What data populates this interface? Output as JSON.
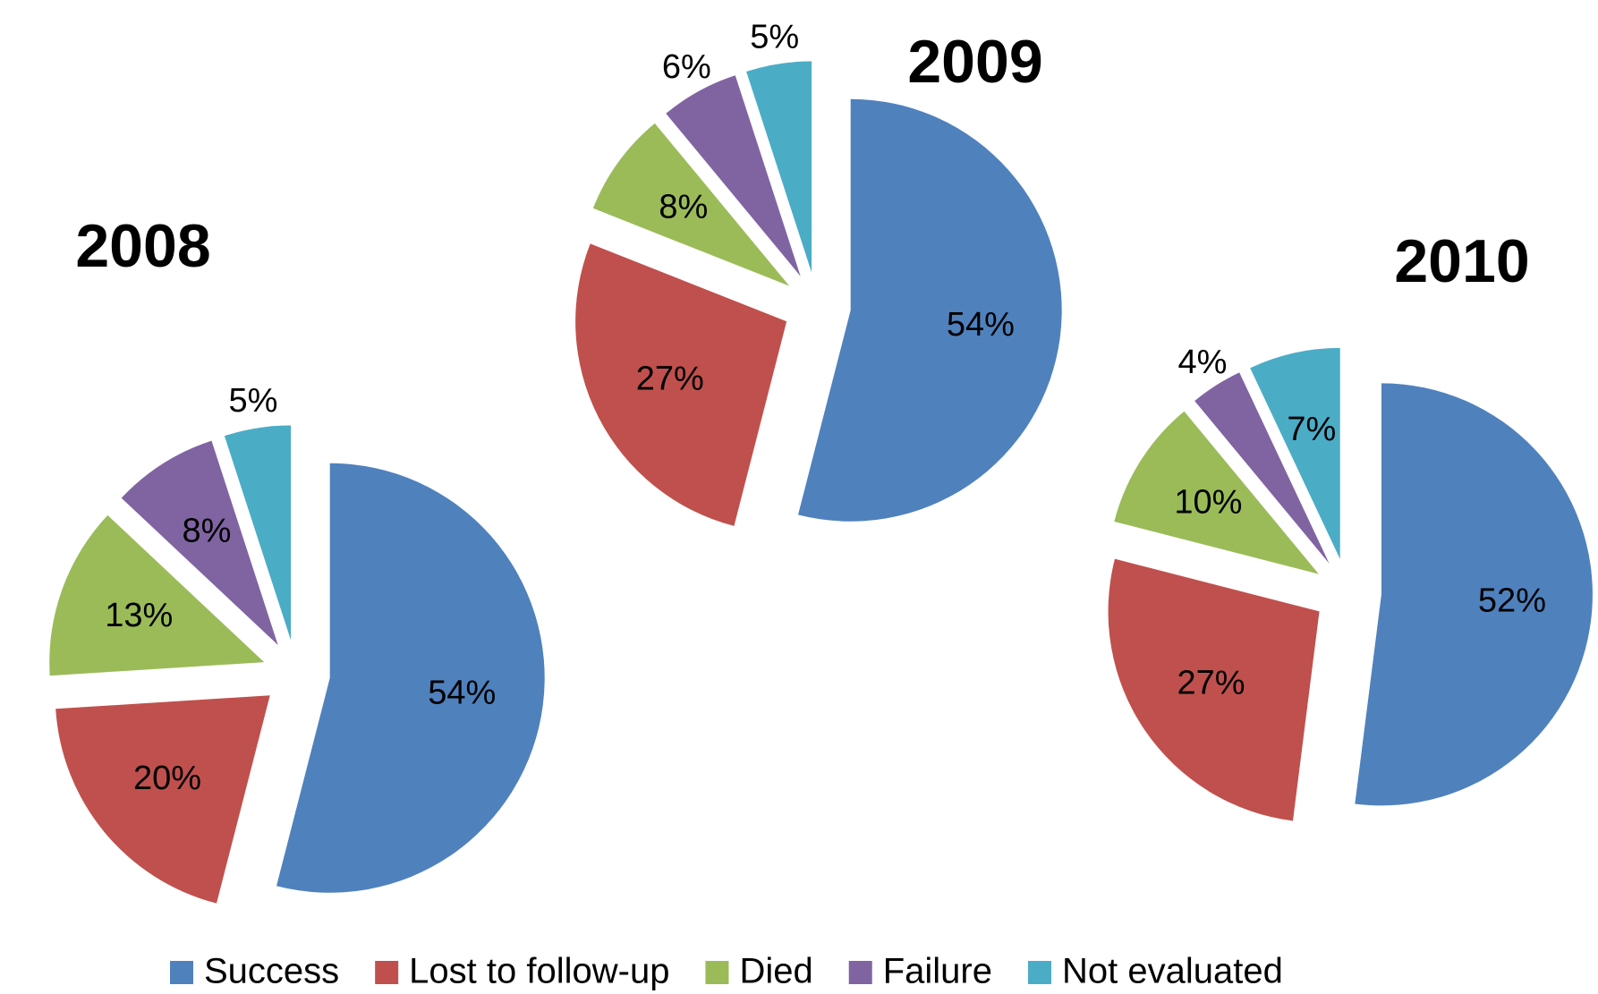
{
  "chart_data": [
    {
      "type": "pie",
      "title": "2008",
      "categories": [
        "Success",
        "Lost to follow-up",
        "Died",
        "Failure",
        "Not evaluated"
      ],
      "values": [
        54,
        20,
        13,
        8,
        5
      ],
      "value_labels": [
        "54%",
        "20%",
        "13%",
        "8%",
        "5%"
      ],
      "colors": [
        "#4f81bd",
        "#c0504d",
        "#9bbb59",
        "#8064a2",
        "#4bacc6"
      ]
    },
    {
      "type": "pie",
      "title": "2009",
      "categories": [
        "Success",
        "Lost to follow-up",
        "Died",
        "Failure",
        "Not evaluated"
      ],
      "values": [
        54,
        27,
        8,
        6,
        5
      ],
      "value_labels": [
        "54%",
        "27%",
        "8%",
        "6%",
        "5%"
      ],
      "colors": [
        "#4f81bd",
        "#c0504d",
        "#9bbb59",
        "#8064a2",
        "#4bacc6"
      ]
    },
    {
      "type": "pie",
      "title": "2010",
      "categories": [
        "Success",
        "Lost to follow-up",
        "Died",
        "Failure",
        "Not evaluated"
      ],
      "values": [
        52,
        27,
        10,
        4,
        7
      ],
      "value_labels": [
        "52%",
        "27%",
        "10%",
        "4%",
        "7%"
      ],
      "colors": [
        "#4f81bd",
        "#c0504d",
        "#9bbb59",
        "#8064a2",
        "#4bacc6"
      ]
    }
  ]
}
